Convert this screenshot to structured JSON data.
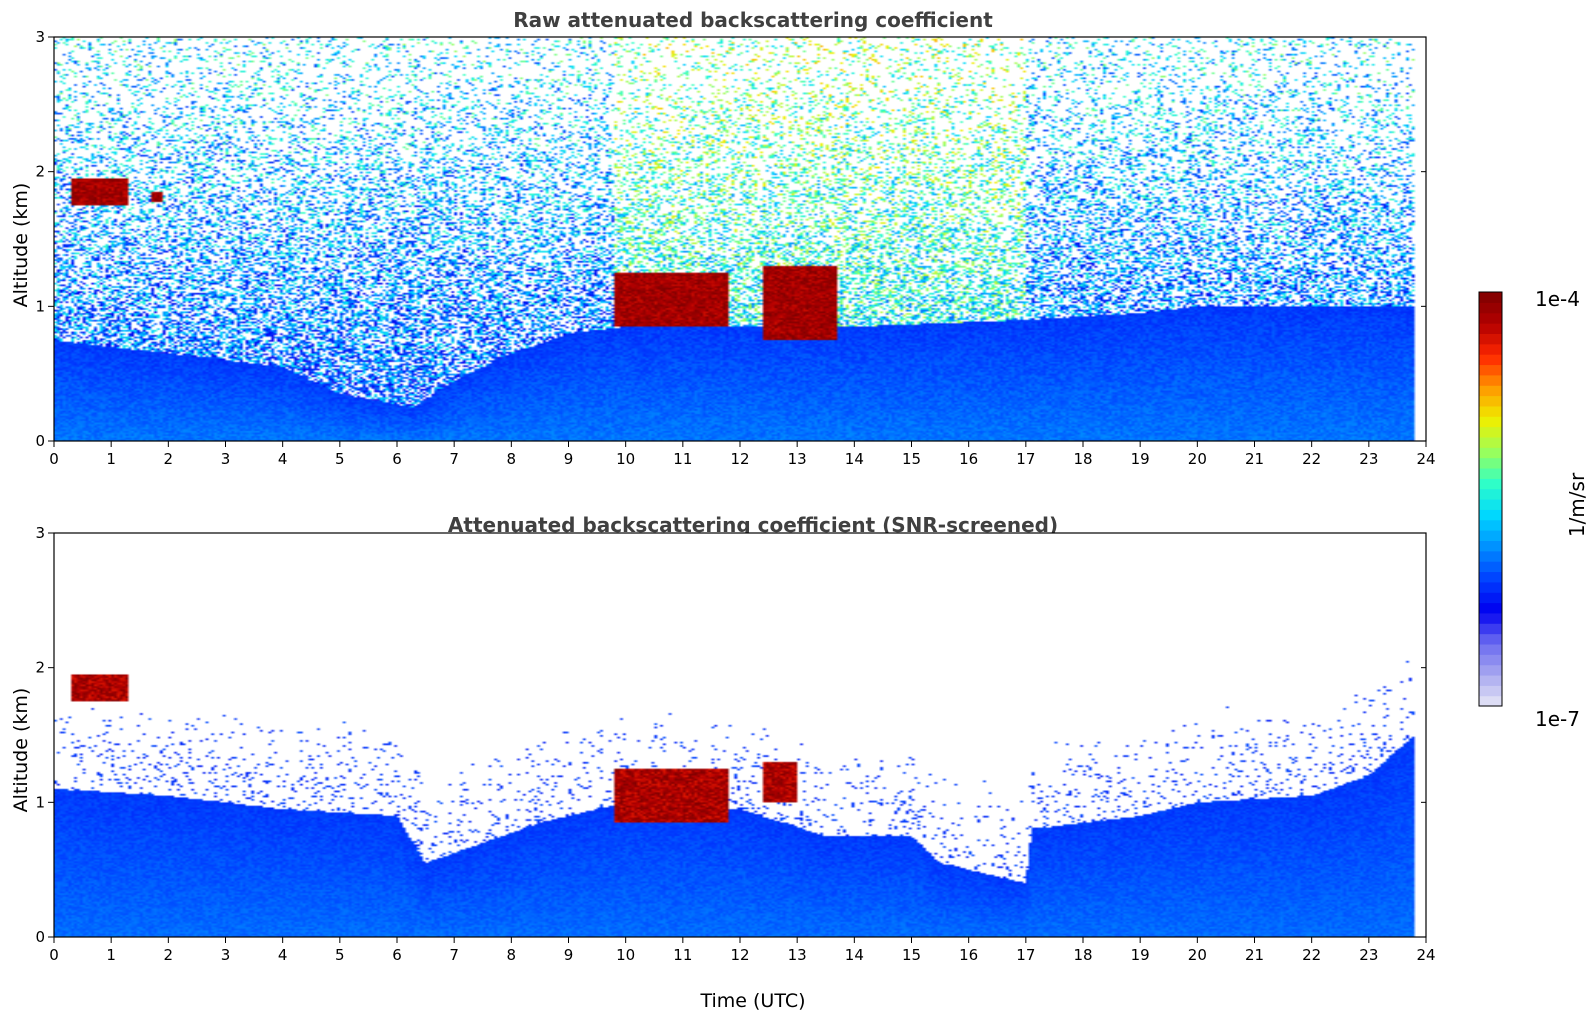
{
  "chart_data": [
    {
      "type": "heatmap",
      "title": "Raw attenuated backscattering coefficient",
      "xlabel": "",
      "ylabel": "Altitude (km)",
      "xlim": [
        0,
        24
      ],
      "ylim": [
        0,
        3
      ],
      "x_ticks": [
        "0",
        "1",
        "2",
        "3",
        "4",
        "5",
        "6",
        "7",
        "8",
        "9",
        "10",
        "11",
        "12",
        "13",
        "14",
        "15",
        "16",
        "17",
        "18",
        "19",
        "20",
        "21",
        "22",
        "23",
        "24"
      ],
      "y_ticks": [
        "0",
        "1",
        "2",
        "3"
      ],
      "data_end_hour": 23.8,
      "signal_features": {
        "boundary_layer_top_km": [
          [
            0,
            0.75
          ],
          [
            4,
            0.55
          ],
          [
            5,
            0.35
          ],
          [
            6.3,
            0.25
          ],
          [
            7,
            0.45
          ],
          [
            8,
            0.65
          ],
          [
            9,
            0.8
          ],
          [
            10,
            0.85
          ],
          [
            14,
            0.85
          ],
          [
            17,
            0.9
          ],
          [
            19,
            0.95
          ],
          [
            20,
            1.0
          ],
          [
            23.8,
            1.0
          ]
        ],
        "cloud_layers": [
          {
            "time_utc": [
              0.3,
              1.3
            ],
            "altitude_km": [
              1.75,
              1.95
            ],
            "level": "1e-4"
          },
          {
            "time_utc": [
              1.7,
              1.9
            ],
            "altitude_km": [
              1.78,
              1.85
            ],
            "level": "1e-4"
          },
          {
            "time_utc": [
              9.8,
              11.8
            ],
            "altitude_km": [
              0.85,
              1.25
            ],
            "level": "1e-4"
          },
          {
            "time_utc": [
              12.4,
              13.7
            ],
            "altitude_km": [
              0.75,
              1.3
            ],
            "level": "1e-4"
          }
        ],
        "elevated_noise_time_utc": [
          9.8,
          17.0
        ]
      }
    },
    {
      "type": "heatmap",
      "title": "Attenuated backscattering coefficient (SNR-screened)",
      "xlabel": "Time (UTC)",
      "ylabel": "Altitude (km)",
      "xlim": [
        0,
        24
      ],
      "ylim": [
        0,
        3
      ],
      "x_ticks": [
        "0",
        "1",
        "2",
        "3",
        "4",
        "5",
        "6",
        "7",
        "8",
        "9",
        "10",
        "11",
        "12",
        "13",
        "14",
        "15",
        "16",
        "17",
        "18",
        "19",
        "20",
        "21",
        "22",
        "23",
        "24"
      ],
      "y_ticks": [
        "0",
        "1",
        "2",
        "3"
      ],
      "data_end_hour": 23.8,
      "valid_top_km": [
        [
          0,
          1.1
        ],
        [
          2,
          1.05
        ],
        [
          4,
          0.95
        ],
        [
          6,
          0.9
        ],
        [
          6.5,
          0.55
        ],
        [
          7.5,
          0.7
        ],
        [
          8.5,
          0.85
        ],
        [
          10,
          1.0
        ],
        [
          12,
          0.95
        ],
        [
          13.5,
          0.75
        ],
        [
          15,
          0.75
        ],
        [
          15.5,
          0.55
        ],
        [
          16.5,
          0.45
        ],
        [
          17.0,
          0.4
        ],
        [
          17.1,
          0.8
        ],
        [
          18,
          0.85
        ],
        [
          19,
          0.9
        ],
        [
          20,
          1.0
        ],
        [
          22,
          1.05
        ],
        [
          23,
          1.2
        ],
        [
          23.8,
          1.5
        ]
      ],
      "cloud_layers": [
        {
          "time_utc": [
            0.3,
            1.3
          ],
          "altitude_km": [
            1.75,
            1.95
          ],
          "level": "1e-4"
        },
        {
          "time_utc": [
            9.8,
            11.8
          ],
          "altitude_km": [
            0.85,
            1.25
          ],
          "level": "1e-4"
        },
        {
          "time_utc": [
            12.4,
            13.0
          ],
          "altitude_km": [
            1.0,
            1.3
          ],
          "level": "1e-4"
        }
      ]
    }
  ],
  "colorbar": {
    "label": "1/m/sr",
    "max_label": "1e-4",
    "min_label": "1e-7",
    "colormap": "jet",
    "stops": [
      "#e8e8f6",
      "#a8a8f0",
      "#6a6af0",
      "#0000f0",
      "#0040ff",
      "#0090ff",
      "#00d8ff",
      "#30ffc8",
      "#9cff5a",
      "#f0f000",
      "#ff9a00",
      "#ff2800",
      "#b40000",
      "#7f0000"
    ]
  }
}
